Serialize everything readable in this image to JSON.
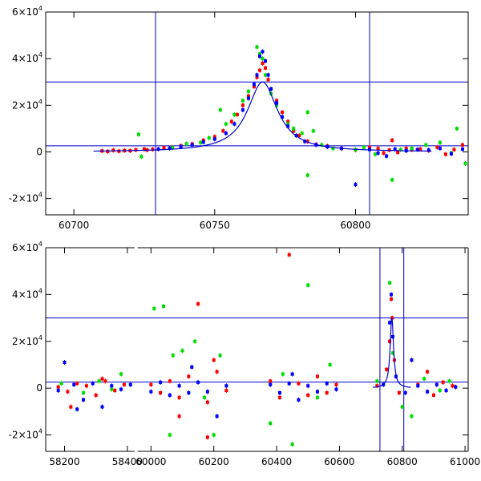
{
  "chart_data": [
    {
      "type": "scatter",
      "title": "",
      "xlabel": "",
      "ylabel": "",
      "xlim": [
        60690,
        60840
      ],
      "ylim": [
        -27000,
        60000
      ],
      "x_ticks": [
        {
          "value": 60700,
          "label": "60700"
        },
        {
          "value": 60750,
          "label": "60750"
        },
        {
          "value": 60800,
          "label": "60800"
        }
      ],
      "y_ticks": [
        {
          "value": -20000,
          "label": "-2×10",
          "exp": "4"
        },
        {
          "value": 0,
          "label": "0",
          "exp": ""
        },
        {
          "value": 20000,
          "label": "2×10",
          "exp": "4"
        },
        {
          "value": 40000,
          "label": "4×10",
          "exp": "4"
        },
        {
          "value": 60000,
          "label": "6×10",
          "exp": "4"
        }
      ],
      "hlines": [
        30000,
        2600
      ],
      "vlines": [
        60729,
        60805
      ],
      "fit": {
        "center": 60767,
        "peak": 30000,
        "width": 6.5,
        "baseline": 0
      },
      "series": [
        {
          "color": "#ff0000",
          "points": [
            [
              60710,
              400
            ],
            [
              60712,
              200
            ],
            [
              60714,
              700
            ],
            [
              60716,
              300
            ],
            [
              60718,
              600
            ],
            [
              60720,
              500
            ],
            [
              60722,
              900
            ],
            [
              60725,
              1200
            ],
            [
              60726,
              800
            ],
            [
              60728,
              1100
            ],
            [
              60732,
              1800
            ],
            [
              60735,
              2000
            ],
            [
              60738,
              2600
            ],
            [
              60742,
              3400
            ],
            [
              60746,
              5000
            ],
            [
              60750,
              6500
            ],
            [
              60753,
              9000
            ],
            [
              60756,
              13000
            ],
            [
              60758,
              16000
            ],
            [
              60760,
              20000
            ],
            [
              60762,
              24000
            ],
            [
              60764,
              28000
            ],
            [
              60765,
              32000
            ],
            [
              60766,
              35000
            ],
            [
              60767,
              38000
            ],
            [
              60768,
              36000
            ],
            [
              60769,
              31000
            ],
            [
              60770,
              27000
            ],
            [
              60772,
              22000
            ],
            [
              60774,
              17000
            ],
            [
              60776,
              13000
            ],
            [
              60778,
              9000
            ],
            [
              60780,
              7000
            ],
            [
              60783,
              4500
            ],
            [
              60786,
              3200
            ],
            [
              60790,
              2500
            ],
            [
              60795,
              1500
            ],
            [
              60800,
              800
            ],
            [
              60805,
              2000
            ],
            [
              60808,
              1500
            ],
            [
              60810,
              -500
            ],
            [
              60812,
              800
            ],
            [
              60815,
              -200
            ],
            [
              60818,
              1500
            ],
            [
              60820,
              900
            ],
            [
              60823,
              1200
            ],
            [
              60826,
              600
            ],
            [
              60829,
              2000
            ],
            [
              60832,
              -1000
            ],
            [
              60835,
              1000
            ],
            [
              60838,
              3000
            ],
            [
              60813,
              5000
            ]
          ]
        },
        {
          "color": "#00dd00",
          "points": [
            [
              60723,
              7500
            ],
            [
              60724,
              -2000
            ],
            [
              60735,
              1800
            ],
            [
              60740,
              3500
            ],
            [
              60745,
              4000
            ],
            [
              60748,
              6000
            ],
            [
              60752,
              18000
            ],
            [
              60754,
              12000
            ],
            [
              60757,
              16000
            ],
            [
              60760,
              22000
            ],
            [
              60762,
              26000
            ],
            [
              60765,
              45000
            ],
            [
              60766,
              42000
            ],
            [
              60767,
              40000
            ],
            [
              60768,
              33000
            ],
            [
              60770,
              25000
            ],
            [
              60772,
              20000
            ],
            [
              60774,
              15000
            ],
            [
              60776,
              12000
            ],
            [
              60778,
              10000
            ],
            [
              60781,
              8000
            ],
            [
              60783,
              17000
            ],
            [
              60785,
              9000
            ],
            [
              60783,
              -10000
            ],
            [
              60788,
              3000
            ],
            [
              60792,
              1500
            ],
            [
              60800,
              1000
            ],
            [
              60803,
              2000
            ],
            [
              60807,
              -1000
            ],
            [
              60813,
              -12000
            ],
            [
              60816,
              1000
            ],
            [
              60820,
              1500
            ],
            [
              60825,
              3000
            ],
            [
              60830,
              4000
            ],
            [
              60834,
              -500
            ],
            [
              60836,
              10000
            ],
            [
              60839,
              -5000
            ]
          ]
        },
        {
          "color": "#0000ff",
          "points": [
            [
              60730,
              1200
            ],
            [
              60734,
              1600
            ],
            [
              60738,
              2200
            ],
            [
              60742,
              3000
            ],
            [
              60746,
              4200
            ],
            [
              60750,
              5500
            ],
            [
              60754,
              8000
            ],
            [
              60757,
              12000
            ],
            [
              60760,
              18000
            ],
            [
              60762,
              23000
            ],
            [
              60764,
              29000
            ],
            [
              60765,
              33000
            ],
            [
              60766,
              41000
            ],
            [
              60767,
              43000
            ],
            [
              60768,
              39000
            ],
            [
              60769,
              33000
            ],
            [
              60770,
              27000
            ],
            [
              60772,
              21000
            ],
            [
              60774,
              15000
            ],
            [
              60776,
              11000
            ],
            [
              60779,
              7000
            ],
            [
              60782,
              4500
            ],
            [
              60786,
              3000
            ],
            [
              60790,
              2200
            ],
            [
              60795,
              1500
            ],
            [
              60800,
              -14000
            ],
            [
              60805,
              1000
            ],
            [
              60808,
              -500
            ],
            [
              60811,
              -1800
            ],
            [
              60814,
              1200
            ],
            [
              60818,
              500
            ],
            [
              60822,
              1000
            ],
            [
              60826,
              800
            ],
            [
              60830,
              1500
            ],
            [
              60834,
              -800
            ],
            [
              60838,
              1200
            ]
          ]
        }
      ]
    },
    {
      "type": "scatter",
      "title": "",
      "xlabel": "",
      "ylabel": "",
      "xlim": [
        58140,
        61010
      ],
      "ylim": [
        -27000,
        60000
      ],
      "axis_break": {
        "after": 58420,
        "before": 59960
      },
      "x_ticks": [
        {
          "value": 58200,
          "label": "58200"
        },
        {
          "value": 58400,
          "label": "58400"
        },
        {
          "value": 60000,
          "label": "60000"
        },
        {
          "value": 60200,
          "label": "60200"
        },
        {
          "value": 60400,
          "label": "60400"
        },
        {
          "value": 60600,
          "label": "60600"
        },
        {
          "value": 60800,
          "label": "60800"
        },
        {
          "value": 61000,
          "label": "61000"
        }
      ],
      "y_ticks": [
        {
          "value": -20000,
          "label": "-2×10",
          "exp": "4"
        },
        {
          "value": 0,
          "label": "0",
          "exp": ""
        },
        {
          "value": 20000,
          "label": "2×10",
          "exp": "4"
        },
        {
          "value": 40000,
          "label": "4×10",
          "exp": "4"
        },
        {
          "value": 60000,
          "label": "6×10",
          "exp": "4"
        }
      ],
      "hlines": [
        30000,
        2600
      ],
      "vlines": [
        60729,
        60805
      ],
      "fit": {
        "center": 60767,
        "peak": 30000,
        "width": 6.5,
        "baseline": 0
      },
      "series": [
        {
          "color": "#ff0000",
          "points": [
            [
              58180,
              500
            ],
            [
              58210,
              -1500
            ],
            [
              58240,
              2000
            ],
            [
              58270,
              1000
            ],
            [
              58300,
              -3000
            ],
            [
              58330,
              3000
            ],
            [
              58360,
              -1000
            ],
            [
              58390,
              1500
            ],
            [
              58220,
              -8000
            ],
            [
              58320,
              4000
            ],
            [
              60000,
              1500
            ],
            [
              60030,
              -2000
            ],
            [
              60060,
              3000
            ],
            [
              60090,
              -4000
            ],
            [
              60120,
              5000
            ],
            [
              60150,
              36000
            ],
            [
              60180,
              -6000
            ],
            [
              60210,
              7000
            ],
            [
              60240,
              -1000
            ],
            [
              60090,
              -12000
            ],
            [
              60180,
              -21000
            ],
            [
              60200,
              12000
            ],
            [
              60380,
              3000
            ],
            [
              60410,
              -4000
            ],
            [
              60440,
              57000
            ],
            [
              60470,
              2000
            ],
            [
              60500,
              -3000
            ],
            [
              60530,
              5000
            ],
            [
              60560,
              -2000
            ],
            [
              60590,
              1500
            ],
            [
              60720,
              1000
            ],
            [
              60750,
              8000
            ],
            [
              60760,
              20000
            ],
            [
              60765,
              38000
            ],
            [
              60768,
              30000
            ],
            [
              60775,
              12000
            ],
            [
              60790,
              -2000
            ],
            [
              60850,
              1500
            ],
            [
              60900,
              -3000
            ],
            [
              60930,
              2500
            ],
            [
              60960,
              1000
            ],
            [
              60880,
              7000
            ]
          ]
        },
        {
          "color": "#00dd00",
          "points": [
            [
              58190,
              2000
            ],
            [
              58260,
              -2000
            ],
            [
              58310,
              3000
            ],
            [
              58350,
              -500
            ],
            [
              58380,
              6000
            ],
            [
              60010,
              34000
            ],
            [
              60040,
              35000
            ],
            [
              60070,
              14000
            ],
            [
              60100,
              16000
            ],
            [
              60140,
              20000
            ],
            [
              60170,
              -4000
            ],
            [
              60200,
              -20000
            ],
            [
              60220,
              14000
            ],
            [
              60060,
              -20000
            ],
            [
              60380,
              -15000
            ],
            [
              60420,
              6000
            ],
            [
              60450,
              -24000
            ],
            [
              60500,
              44000
            ],
            [
              60530,
              -4000
            ],
            [
              60570,
              10000
            ],
            [
              60720,
              3000
            ],
            [
              60760,
              45000
            ],
            [
              60770,
              15000
            ],
            [
              60800,
              -8000
            ],
            [
              60830,
              -12000
            ],
            [
              60870,
              4000
            ],
            [
              60920,
              -1000
            ],
            [
              60950,
              3000
            ]
          ]
        },
        {
          "color": "#0000ff",
          "points": [
            [
              58180,
              -1000
            ],
            [
              58200,
              11000
            ],
            [
              58230,
              1500
            ],
            [
              58260,
              -5000
            ],
            [
              58290,
              2000
            ],
            [
              58320,
              -8000
            ],
            [
              58350,
              1000
            ],
            [
              58380,
              -500
            ],
            [
              58410,
              1500
            ],
            [
              58240,
              -9000
            ],
            [
              60000,
              -1500
            ],
            [
              60030,
              2500
            ],
            [
              60060,
              -3000
            ],
            [
              60090,
              1000
            ],
            [
              60120,
              -2000
            ],
            [
              60150,
              2500
            ],
            [
              60180,
              -1500
            ],
            [
              60210,
              -12000
            ],
            [
              60240,
              1000
            ],
            [
              60130,
              9000
            ],
            [
              60380,
              1500
            ],
            [
              60410,
              -2000
            ],
            [
              60440,
              2000
            ],
            [
              60470,
              -5000
            ],
            [
              60500,
              1000
            ],
            [
              60530,
              -1500
            ],
            [
              60560,
              2000
            ],
            [
              60590,
              -500
            ],
            [
              60450,
              6000
            ],
            [
              60740,
              1500
            ],
            [
              60760,
              28000
            ],
            [
              60765,
              40000
            ],
            [
              60770,
              22000
            ],
            [
              60780,
              5000
            ],
            [
              60810,
              -2000
            ],
            [
              60850,
              1000
            ],
            [
              60880,
              -1500
            ],
            [
              60910,
              1500
            ],
            [
              60940,
              -1000
            ],
            [
              60970,
              500
            ],
            [
              60830,
              12000
            ]
          ]
        }
      ]
    }
  ]
}
